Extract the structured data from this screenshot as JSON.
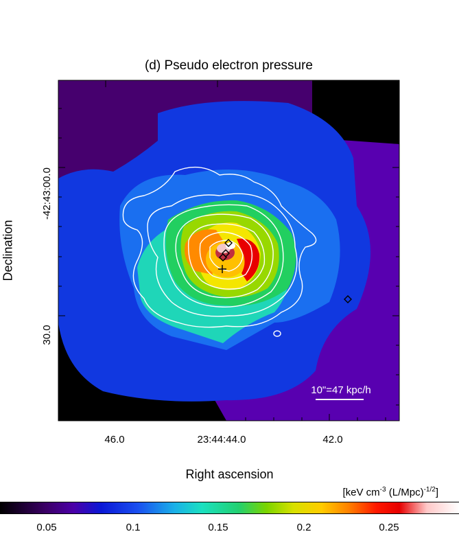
{
  "title": "(d) Pseudo electron pressure",
  "axes": {
    "ylabel": "Declination",
    "xlabel": "Right ascension",
    "y_ticks": [
      "-42:43:00.0",
      "30.0"
    ],
    "x_ticks": [
      "46.0",
      "23:44:44.0",
      "42.0"
    ]
  },
  "scale_bar": {
    "label": "10\"=47 kpc/h"
  },
  "colorbar": {
    "unit_main": "[keV cm",
    "unit_exp1": "-3",
    "unit_mid": " (L/Mpc)",
    "unit_exp2": "-1/2",
    "unit_end": "]",
    "ticks": [
      "0.05",
      "0.1",
      "0.15",
      "0.2",
      "0.25"
    ]
  },
  "colors": {
    "background_black": "#000000",
    "dark_purple": "#4a0070",
    "violet": "#5a00b0",
    "blue": "#1440e6",
    "light_blue": "#1e78f0",
    "cyan": "#20d8b0",
    "green": "#22d064",
    "yellow_green": "#90d800",
    "yellow": "#f8e800",
    "orange": "#ff8c00",
    "red": "#e80000",
    "contour": "#ffffff"
  }
}
